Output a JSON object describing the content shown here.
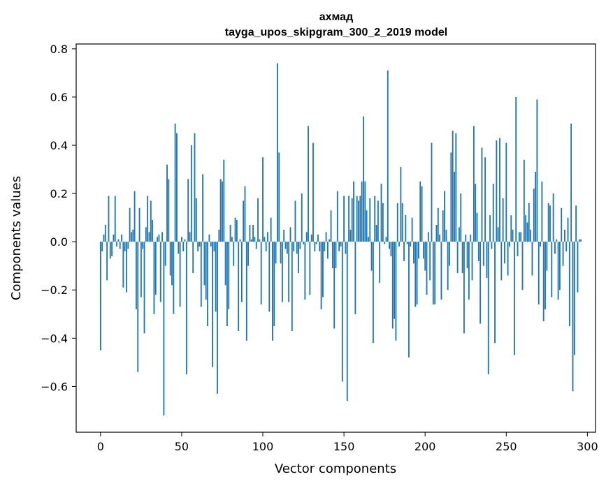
{
  "chart_data": {
    "type": "bar",
    "title": "ахмад",
    "subtitle": "tayga_upos_skipgram_300_2_2019 model",
    "xlabel": "Vector components",
    "ylabel": "Components values",
    "xlim": [
      -15,
      305
    ],
    "ylim": [
      -0.79,
      0.82
    ],
    "x_ticks": [
      0,
      50,
      100,
      150,
      200,
      250,
      300
    ],
    "x_tick_labels": [
      "0",
      "50",
      "100",
      "150",
      "200",
      "250",
      "300"
    ],
    "y_ticks": [
      -0.6,
      -0.4,
      -0.2,
      0.0,
      0.2,
      0.4,
      0.6,
      0.8
    ],
    "y_tick_labels": [
      "−0.6",
      "−0.4",
      "−0.2",
      "0.0",
      "0.2",
      "0.4",
      "0.6",
      "0.8"
    ],
    "grid": false,
    "color": "#1f77b4",
    "values": [
      -0.45,
      -0.04,
      0.03,
      0.07,
      -0.16,
      0.19,
      -0.07,
      -0.06,
      0.03,
      0.19,
      -0.02,
      0.01,
      -0.03,
      0.03,
      -0.19,
      -0.04,
      -0.21,
      -0.03,
      0.14,
      0.04,
      0.05,
      0.21,
      -0.28,
      -0.54,
      0.14,
      -0.23,
      -0.03,
      -0.38,
      0.06,
      0.19,
      0.04,
      0.17,
      0.09,
      -0.3,
      -0.22,
      0.02,
      0.03,
      -0.25,
      0.04,
      -0.72,
      -0.1,
      0.32,
      0.26,
      -0.14,
      -0.18,
      -0.3,
      0.49,
      0.45,
      -0.05,
      -0.27,
      0.02,
      -0.04,
      0.01,
      -0.55,
      0.26,
      0.04,
      0.4,
      -0.13,
      0.45,
      0.18,
      -0.04,
      -0.02,
      -0.27,
      0.28,
      -0.18,
      -0.24,
      -0.35,
      0.03,
      -0.02,
      -0.52,
      -0.04,
      -0.29,
      -0.63,
      0.05,
      0.26,
      0.25,
      0.34,
      -0.18,
      -0.35,
      -0.28,
      0.07,
      0.02,
      -0.1,
      0.1,
      0.09,
      -0.37,
      0.01,
      -0.25,
      0.17,
      0.23,
      -0.41,
      -0.1,
      0.07,
      0.01,
      0.07,
      0.02,
      -0.03,
      0.18,
      0.01,
      -0.26,
      0.35,
      0.02,
      -0.04,
      0.04,
      -0.29,
      0.1,
      -0.41,
      -0.35,
      -0.09,
      0.74,
      0.37,
      -0.09,
      -0.25,
      0.05,
      -0.03,
      -0.05,
      -0.25,
      0.06,
      -0.37,
      -0.04,
      0.17,
      -0.05,
      -0.13,
      -0.03,
      0.2,
      -0.01,
      -0.24,
      0.04,
      0.48,
      -0.22,
      0.03,
      0.41,
      -0.04,
      -0.01,
      0.03,
      -0.04,
      -0.28,
      -0.23,
      -0.04,
      0.04,
      -0.07,
      0.01,
      0.13,
      -0.11,
      -0.36,
      -0.11,
      0.21,
      -0.04,
      -0.02,
      -0.58,
      0.19,
      -0.05,
      -0.66,
      0.19,
      0.05,
      0.18,
      0.25,
      -0.3,
      0.19,
      0.17,
      0.19,
      0.25,
      0.52,
      0.25,
      0.13,
      0.02,
      0.18,
      -0.12,
      -0.42,
      0.19,
      0.07,
      0.17,
      -0.17,
      0.24,
      0.16,
      -0.01,
      0.02,
      0.71,
      -0.03,
      -0.06,
      -0.36,
      -0.32,
      -0.41,
      0.16,
      -0.02,
      0.31,
      0.16,
      -0.08,
      0.11,
      -0.01,
      -0.48,
      -0.02,
      0.1,
      -0.09,
      -0.27,
      -0.26,
      -0.07,
      0.25,
      0.23,
      -0.07,
      -0.12,
      -0.22,
      0.04,
      -0.16,
      0.41,
      -0.26,
      -0.26,
      0.07,
      0.14,
      0.03,
      -0.24,
      0.13,
      0.21,
      0.05,
      -0.2,
      -0.1,
      0.37,
      0.46,
      0.29,
      0.45,
      -0.13,
      0.06,
      0.2,
      -0.13,
      -0.38,
      0.03,
      -0.11,
      -0.24,
      0.03,
      -0.16,
      0.48,
      0.24,
      0.12,
      -0.08,
      -0.34,
      0.39,
      -0.1,
      0.35,
      -0.15,
      -0.55,
      0.11,
      -0.03,
      0.24,
      -0.42,
      0.42,
      0.06,
      0.43,
      -0.16,
      0.18,
      -0.09,
      0.41,
      -0.14,
      -0.02,
      0.11,
      0.05,
      -0.47,
      0.6,
      -0.06,
      0.04,
      0.04,
      -0.2,
      0.34,
      0.11,
      0.08,
      0.16,
      0.05,
      -0.14,
      0.22,
      0.29,
      0.59,
      -0.26,
      -0.02,
      0.25,
      -0.33,
      -0.28,
      -0.12,
      0.16,
      0.15,
      -0.23,
      0.2,
      -0.05,
      0.01,
      -0.24,
      -0.2,
      0.14,
      -0.1,
      0.05,
      -0.04,
      0.1,
      -0.35,
      0.49,
      -0.62,
      -0.47,
      0.15,
      -0.21,
      0.01,
      0.01
    ]
  }
}
